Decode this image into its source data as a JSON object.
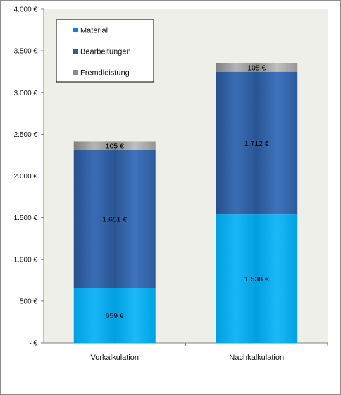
{
  "chart_data": {
    "type": "bar",
    "stacked": true,
    "categories": [
      "Vorkalkulation",
      "Nachkalkulation"
    ],
    "series": [
      {
        "name": "Material",
        "values": [
          659,
          1538
        ],
        "labels": [
          "659 €",
          "1.538 €"
        ],
        "color": "#00a6ea"
      },
      {
        "name": "Bearbeitungen",
        "values": [
          1651,
          1712
        ],
        "labels": [
          "1.651 €",
          "1.712 €"
        ],
        "color": "#2e5c9e"
      },
      {
        "name": "Fremdleistung",
        "values": [
          105,
          105
        ],
        "labels": [
          "105 €",
          "105 €"
        ],
        "color": "#a6a6a6"
      }
    ],
    "ylim": [
      0,
      4000
    ],
    "yticks": [
      {
        "value": 0,
        "label": "-   €"
      },
      {
        "value": 500,
        "label": "500 €"
      },
      {
        "value": 1000,
        "label": "1.000 €"
      },
      {
        "value": 1500,
        "label": "1.500 €"
      },
      {
        "value": 2000,
        "label": "2.000 €"
      },
      {
        "value": 2500,
        "label": "2.500 €"
      },
      {
        "value": 3000,
        "label": "3.000 €"
      },
      {
        "value": 3500,
        "label": "3.500 €"
      },
      {
        "value": 4000,
        "label": "4.000 €"
      }
    ],
    "legend": {
      "position": "top-left",
      "entries": [
        "Material",
        "Bearbeitungen",
        "Fremdleistung"
      ]
    },
    "plot_background": "#efefe9",
    "grid": false
  }
}
